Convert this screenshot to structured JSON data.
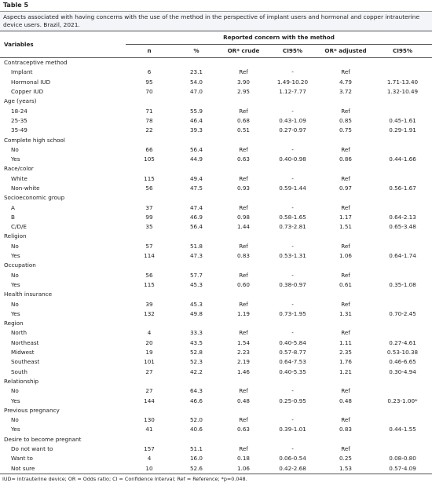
{
  "table_label": "Table 5",
  "caption": "Aspects associated with having concerns with the use of the method in the perspective of implant users and hormonal and copper intrauterine device users. Brazil, 2021.",
  "header": {
    "variables": "Variables",
    "group": "Reported concern with the method",
    "columns": [
      "n",
      "%",
      "OR* crude",
      "CI95%",
      "OR* adjusted",
      "CI95%"
    ]
  },
  "groups": [
    {
      "name": "Contraceptive method",
      "rows": [
        [
          "Implant",
          "6",
          "23.1",
          "Ref",
          "-",
          "Ref"
        ],
        [
          "Hormonal IUD",
          "95",
          "54.0",
          "3.90",
          "1.49-10.20",
          "4.79",
          "1.71-13.40"
        ],
        [
          "Copper IUD",
          "70",
          "47.0",
          "2.95",
          "1.12-7.77",
          "3.72",
          "1.32-10.49"
        ]
      ]
    },
    {
      "name": "Age (years)",
      "rows": [
        [
          "18-24",
          "71",
          "55.9",
          "Ref",
          "-",
          "Ref"
        ],
        [
          "25-35",
          "78",
          "46.4",
          "0.68",
          "0.43-1.09",
          "0.85",
          "0.45-1.61"
        ],
        [
          "35-49",
          "22",
          "39.3",
          "0.51",
          "0.27-0.97",
          "0.75",
          "0.29-1.91"
        ]
      ]
    },
    {
      "name": "Complete high school",
      "rows": [
        [
          "No",
          "66",
          "56.4",
          "Ref",
          "-",
          "Ref"
        ],
        [
          "Yes",
          "105",
          "44.9",
          "0.63",
          "0.40-0.98",
          "0.86",
          "0.44-1.66"
        ]
      ]
    },
    {
      "name": "Race/color",
      "rows": [
        [
          "White",
          "115",
          "49.4",
          "Ref",
          "-",
          "Ref"
        ],
        [
          "Non-white",
          "56",
          "47.5",
          "0.93",
          "0.59-1.44",
          "0.97",
          "0.56-1.67"
        ]
      ]
    },
    {
      "name": "Socioeconomic group",
      "rows": [
        [
          "A",
          "37",
          "47.4",
          "Ref",
          "-",
          "Ref"
        ],
        [
          "B",
          "99",
          "46.9",
          "0.98",
          "0.58-1.65",
          "1.17",
          "0.64-2.13"
        ],
        [
          "C/D/E",
          "35",
          "56.4",
          "1.44",
          "0.73-2.81",
          "1.51",
          "0.65-3.48"
        ]
      ]
    },
    {
      "name": "Religion",
      "rows": [
        [
          "No",
          "57",
          "51.8",
          "Ref",
          "-",
          "Ref"
        ],
        [
          "Yes",
          "114",
          "47.3",
          "0.83",
          "0.53-1.31",
          "1.06",
          "0.64-1.74"
        ]
      ]
    },
    {
      "name": "Occupation",
      "rows": [
        [
          "No",
          "56",
          "57.7",
          "Ref",
          "-",
          "Ref"
        ],
        [
          "Yes",
          "115",
          "45.3",
          "0.60",
          "0.38-0.97",
          "0.61",
          "0.35-1.08"
        ]
      ]
    },
    {
      "name": "Health insurance",
      "rows": [
        [
          "No",
          "39",
          "45.3",
          "Ref",
          "-",
          "Ref"
        ],
        [
          "Yes",
          "132",
          "49.8",
          "1.19",
          "0.73-1.95",
          "1.31",
          "0.70-2.45"
        ]
      ]
    },
    {
      "name": "Region",
      "rows": [
        [
          "North",
          "4",
          "33.3",
          "Ref",
          "-",
          "Ref"
        ],
        [
          "Northeast",
          "20",
          "43.5",
          "1.54",
          "0.40-5.84",
          "1.11",
          "0.27-4.61"
        ],
        [
          "Midwest",
          "19",
          "52.8",
          "2.23",
          "0.57-8.77",
          "2.35",
          "0.53-10.38"
        ],
        [
          "Southeast",
          "101",
          "52.3",
          "2.19",
          "0.64-7.53",
          "1.76",
          "0.46-6.65"
        ],
        [
          "South",
          "27",
          "42.2",
          "1.46",
          "0.40-5.35",
          "1.21",
          "0.30-4.94"
        ]
      ]
    },
    {
      "name": "Relationship",
      "rows": [
        [
          "No",
          "27",
          "64.3",
          "Ref",
          "-",
          "Ref"
        ],
        [
          "Yes",
          "144",
          "46.6",
          "0.48",
          "0.25-0.95",
          "0.48",
          "0.23-1.00*"
        ]
      ]
    },
    {
      "name": "Previous pregnancy",
      "rows": [
        [
          "No",
          "130",
          "52.0",
          "Ref",
          "-",
          "Ref"
        ],
        [
          "Yes",
          "41",
          "40.6",
          "0.63",
          "0.39-1.01",
          "0.83",
          "0.44-1.55"
        ]
      ]
    },
    {
      "name": "Desire to become pregnant",
      "rows": [
        [
          "Do not want to",
          "157",
          "51.1",
          "Ref",
          "-",
          "Ref"
        ],
        [
          "Want to",
          "4",
          "16.0",
          "0.18",
          "0.06-0.54",
          "0.25",
          "0.08-0.80"
        ],
        [
          "Not sure",
          "10",
          "52.6",
          "1.06",
          "0.42-2.68",
          "1.53",
          "0.57-4.09"
        ]
      ]
    }
  ],
  "footnote": "IUD= intrauterine device; OR = Odds ratio; CI = Confidence Interval; Ref = Reference; *p=0.048."
}
